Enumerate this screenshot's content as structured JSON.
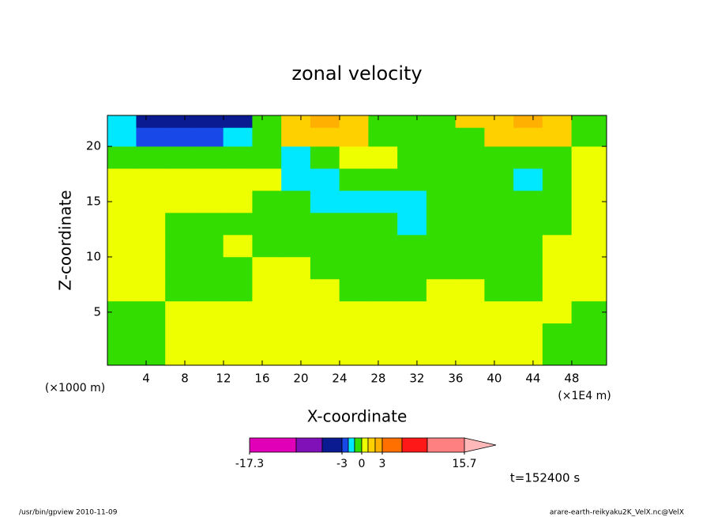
{
  "chart_data": {
    "type": "contour",
    "title": "zonal velocity",
    "x_label": "X-coordinate",
    "y_label": "Z-coordinate",
    "x_unit_left": "(×1000 m)",
    "x_unit_right": "(×1E4 m)",
    "time_label": "t=152400 s",
    "footer_left": "/usr/bin/gpview   2010-11-09",
    "footer_right": "arare-earth-reikyaku2K_VelX.nc@VelX",
    "xlim": [
      0,
      51.6
    ],
    "ylim": [
      0.2,
      22.8
    ],
    "xticks": [
      4,
      8,
      12,
      16,
      20,
      24,
      28,
      32,
      36,
      40,
      44,
      48
    ],
    "yticks": [
      5,
      10,
      15,
      20
    ],
    "x": [
      1.5,
      4.5,
      7.5,
      10.5,
      13.5,
      16.5,
      19.5,
      22.5,
      25.5,
      28.5,
      31.5,
      34.5,
      37.5,
      40.5,
      43.5,
      46.5,
      49.5
    ],
    "y": [
      1,
      3,
      5,
      7,
      9,
      11,
      13,
      15,
      17,
      19,
      21,
      22.4
    ],
    "z": [
      [
        -0.5,
        -0.5,
        0.5,
        0.5,
        0.5,
        0.5,
        0.5,
        0.5,
        0.5,
        0.5,
        0.5,
        0.5,
        0.5,
        0.5,
        0.5,
        -0.5,
        -0.5
      ],
      [
        -0.5,
        -0.5,
        0.5,
        0.5,
        0.5,
        0.5,
        0.5,
        0.5,
        0.5,
        0.5,
        0.5,
        0.5,
        0.5,
        0.5,
        0.5,
        -0.5,
        -0.5
      ],
      [
        -0.5,
        -0.5,
        0.5,
        0.5,
        0.5,
        0.5,
        0.5,
        0.5,
        0.5,
        0.5,
        0.5,
        0.5,
        0.5,
        0.5,
        0.5,
        0.5,
        -0.5
      ],
      [
        0.5,
        0.5,
        -0.5,
        -0.5,
        -0.5,
        0.5,
        0.5,
        0.5,
        -0.5,
        -0.5,
        -0.5,
        0.5,
        0.5,
        -0.5,
        -0.5,
        0.5,
        0.5
      ],
      [
        0.5,
        0.5,
        -0.5,
        -0.5,
        -0.5,
        0.5,
        0.5,
        -0.5,
        -0.5,
        -0.5,
        -0.5,
        -0.5,
        -0.5,
        -0.5,
        -0.5,
        0.5,
        0.5
      ],
      [
        0.5,
        0.5,
        -0.5,
        -0.5,
        0.5,
        -0.5,
        -0.5,
        -0.5,
        -0.5,
        -0.5,
        -0.5,
        -0.5,
        -0.5,
        -0.5,
        -0.5,
        0.5,
        0.5
      ],
      [
        0.5,
        0.5,
        -0.5,
        -0.5,
        -0.5,
        -0.5,
        -0.5,
        -0.5,
        -0.5,
        -0.5,
        -1.5,
        -0.5,
        -0.5,
        -0.5,
        -0.5,
        -0.5,
        0.5
      ],
      [
        0.5,
        0.5,
        0.5,
        0.5,
        0.5,
        -0.5,
        -0.5,
        -1.5,
        -1.5,
        -1.5,
        -1.5,
        -0.5,
        -0.5,
        -0.5,
        -0.5,
        -0.5,
        0.5
      ],
      [
        0.5,
        0.5,
        0.5,
        0.5,
        0.5,
        0.5,
        -1.5,
        -1.5,
        -0.5,
        -0.5,
        -0.5,
        -0.5,
        -0.5,
        -0.5,
        -1.5,
        -0.5,
        0.5
      ],
      [
        -0.5,
        -0.5,
        -0.5,
        -0.5,
        -0.5,
        -0.5,
        -1.5,
        -0.5,
        0.5,
        0.5,
        -0.5,
        -0.5,
        -0.5,
        -0.5,
        -0.5,
        -0.5,
        0.5
      ],
      [
        -1.5,
        -2.5,
        -2.5,
        -2.5,
        -1.5,
        -0.5,
        1.5,
        1.5,
        1.5,
        -0.5,
        -0.5,
        -0.5,
        -0.5,
        1.5,
        1.5,
        1.5,
        -0.5
      ],
      [
        -1.5,
        -4,
        -4,
        -4,
        -4,
        -0.5,
        1.5,
        2.5,
        1.5,
        -0.5,
        -0.5,
        -0.5,
        1.5,
        1.5,
        2.5,
        1.5,
        -0.5
      ]
    ],
    "levels": [
      -17.3,
      -10,
      -6,
      -3,
      -2,
      -1,
      0,
      1,
      2,
      3,
      6,
      10,
      15.7
    ],
    "colors": [
      "#e000b8",
      "#8010b8",
      "#0a1a90",
      "#1848e8",
      "#00e8ff",
      "#33dd00",
      "#eeff00",
      "#ffd000",
      "#ffb000",
      "#ff7000",
      "#ff1818",
      "#ff8080"
    ],
    "over_color": "#ffb8b8",
    "colorbar_ticks": [
      -17.3,
      -3,
      0,
      3,
      15.7
    ]
  }
}
